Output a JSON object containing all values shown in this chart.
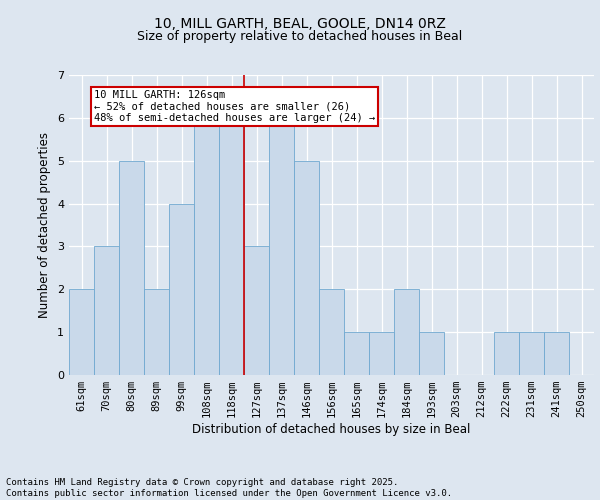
{
  "title_line1": "10, MILL GARTH, BEAL, GOOLE, DN14 0RZ",
  "title_line2": "Size of property relative to detached houses in Beal",
  "xlabel": "Distribution of detached houses by size in Beal",
  "ylabel": "Number of detached properties",
  "categories": [
    "61sqm",
    "70sqm",
    "80sqm",
    "89sqm",
    "99sqm",
    "108sqm",
    "118sqm",
    "127sqm",
    "137sqm",
    "146sqm",
    "156sqm",
    "165sqm",
    "174sqm",
    "184sqm",
    "193sqm",
    "203sqm",
    "212sqm",
    "222sqm",
    "231sqm",
    "241sqm",
    "250sqm"
  ],
  "values": [
    2,
    3,
    5,
    2,
    4,
    6,
    6,
    3,
    6,
    5,
    2,
    1,
    1,
    2,
    1,
    0,
    0,
    1,
    1,
    1,
    0
  ],
  "bar_color": "#c9d9ea",
  "bar_edge_color": "#6fa8d0",
  "vline_x": 6.5,
  "vline_color": "#cc0000",
  "annotation_text": "10 MILL GARTH: 126sqm\n← 52% of detached houses are smaller (26)\n48% of semi-detached houses are larger (24) →",
  "annotation_box_color": "#ffffff",
  "annotation_box_edge_color": "#cc0000",
  "ylim": [
    0,
    7
  ],
  "yticks": [
    0,
    1,
    2,
    3,
    4,
    5,
    6,
    7
  ],
  "background_color": "#dde6f0",
  "plot_background_color": "#dde6f0",
  "footer_text": "Contains HM Land Registry data © Crown copyright and database right 2025.\nContains public sector information licensed under the Open Government Licence v3.0.",
  "title_fontsize": 10,
  "subtitle_fontsize": 9,
  "axis_label_fontsize": 8.5,
  "tick_fontsize": 7.5,
  "annotation_fontsize": 7.5,
  "footer_fontsize": 6.5
}
